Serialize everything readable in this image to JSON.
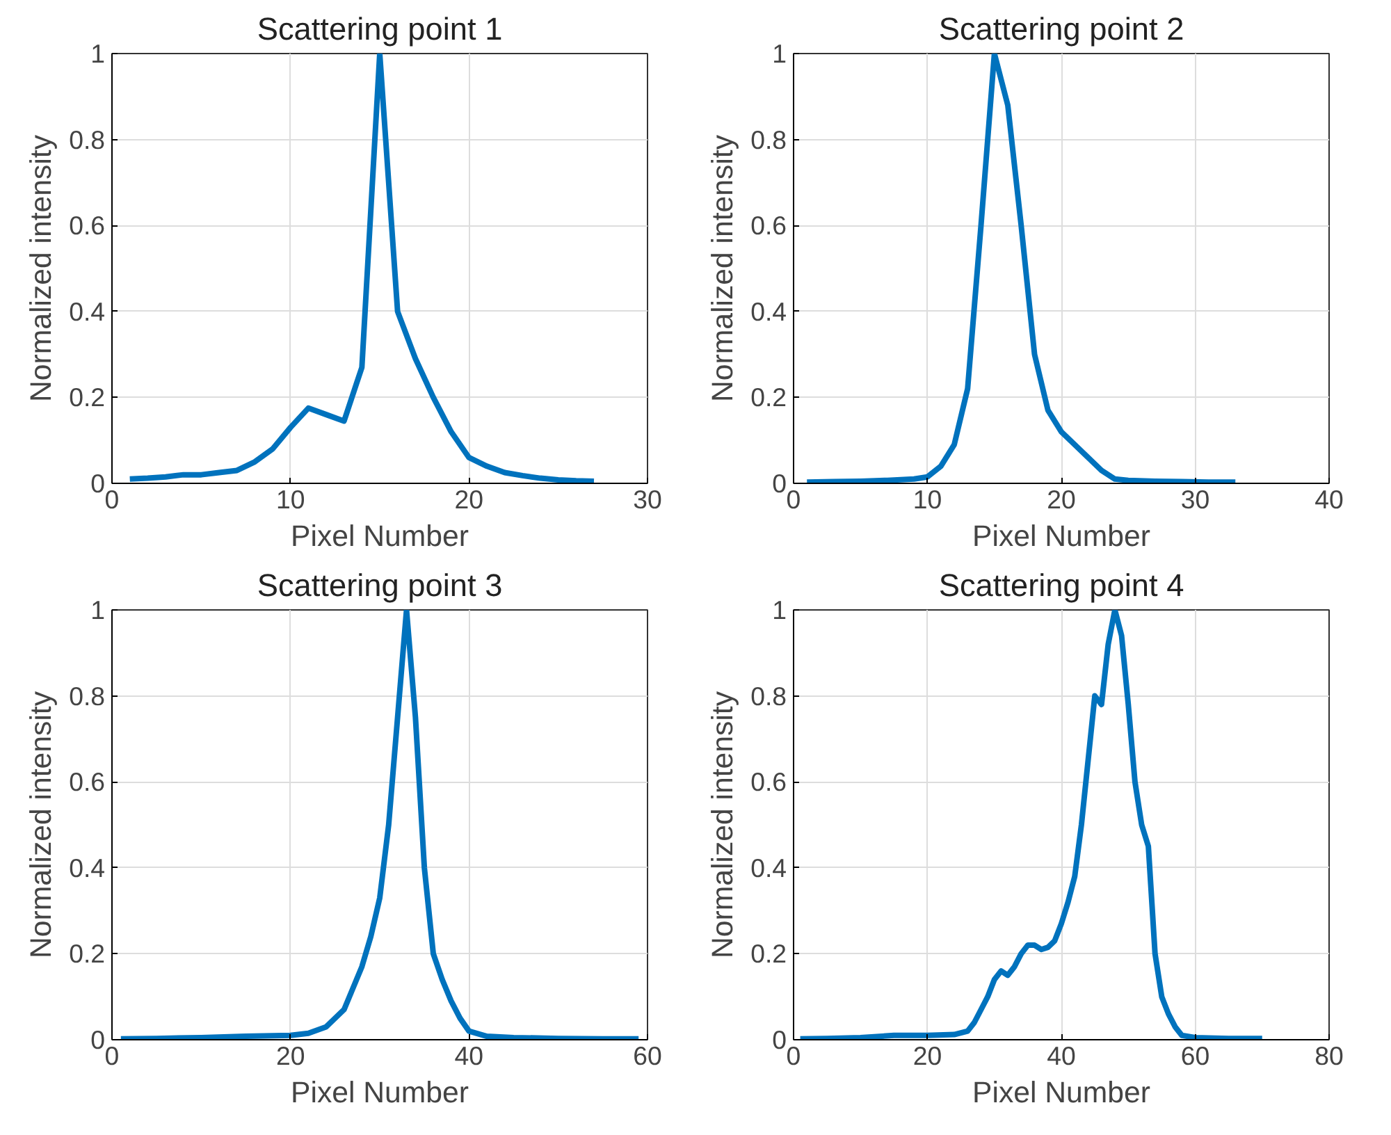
{
  "chart_data": [
    {
      "type": "line",
      "title": "Scattering point 1",
      "xlabel": "Pixel Number",
      "ylabel": "Normalized intensity",
      "grid": true,
      "xlim": [
        0,
        30
      ],
      "xticks": [
        0,
        10,
        20,
        30
      ],
      "ylim": [
        0,
        1
      ],
      "yticks": [
        0,
        0.2,
        0.4,
        0.6,
        0.8,
        1
      ],
      "x": [
        1,
        2,
        3,
        4,
        5,
        6,
        7,
        8,
        9,
        10,
        11,
        12,
        13,
        14,
        15,
        16,
        17,
        18,
        19,
        20,
        21,
        22,
        23,
        24,
        25,
        26,
        27
      ],
      "series": [
        {
          "color": "#0072bd",
          "values": [
            0.01,
            0.012,
            0.015,
            0.02,
            0.02,
            0.025,
            0.03,
            0.05,
            0.08,
            0.13,
            0.175,
            0.16,
            0.145,
            0.27,
            1.0,
            0.4,
            0.29,
            0.2,
            0.12,
            0.06,
            0.04,
            0.025,
            0.018,
            0.012,
            0.008,
            0.006,
            0.005
          ]
        }
      ]
    },
    {
      "type": "line",
      "title": "Scattering point 2",
      "xlabel": "Pixel Number",
      "ylabel": "Normalized intensity",
      "grid": true,
      "xlim": [
        0,
        40
      ],
      "xticks": [
        0,
        10,
        20,
        30,
        40
      ],
      "ylim": [
        0,
        1
      ],
      "yticks": [
        0,
        0.2,
        0.4,
        0.6,
        0.8,
        1
      ],
      "x": [
        1,
        3,
        5,
        7,
        9,
        10,
        11,
        12,
        13,
        14,
        15,
        16,
        17,
        18,
        19,
        20,
        21,
        22,
        23,
        24,
        25,
        27,
        29,
        31,
        33
      ],
      "series": [
        {
          "color": "#0072bd",
          "values": [
            0.003,
            0.004,
            0.005,
            0.007,
            0.01,
            0.015,
            0.04,
            0.09,
            0.22,
            0.6,
            1.0,
            0.88,
            0.6,
            0.3,
            0.17,
            0.12,
            0.09,
            0.06,
            0.03,
            0.01,
            0.007,
            0.005,
            0.004,
            0.003,
            0.003
          ]
        }
      ]
    },
    {
      "type": "line",
      "title": "Scattering point 3",
      "xlabel": "Pixel Number",
      "ylabel": "Normalized intensity",
      "grid": true,
      "xlim": [
        0,
        60
      ],
      "xticks": [
        0,
        20,
        40,
        60
      ],
      "ylim": [
        0,
        1
      ],
      "yticks": [
        0,
        0.2,
        0.4,
        0.6,
        0.8,
        1
      ],
      "x": [
        1,
        5,
        10,
        15,
        20,
        22,
        24,
        26,
        28,
        29,
        30,
        31,
        32,
        33,
        34,
        35,
        36,
        37,
        38,
        39,
        40,
        42,
        45,
        50,
        55,
        59
      ],
      "series": [
        {
          "color": "#0072bd",
          "values": [
            0.002,
            0.003,
            0.005,
            0.008,
            0.01,
            0.015,
            0.03,
            0.07,
            0.17,
            0.24,
            0.33,
            0.5,
            0.75,
            1.0,
            0.75,
            0.4,
            0.2,
            0.14,
            0.09,
            0.05,
            0.02,
            0.008,
            0.005,
            0.003,
            0.002,
            0.002
          ]
        }
      ]
    },
    {
      "type": "line",
      "title": "Scattering point 4",
      "xlabel": "Pixel Number",
      "ylabel": "Normalized intensity",
      "grid": true,
      "xlim": [
        0,
        80
      ],
      "xticks": [
        0,
        20,
        40,
        60,
        80
      ],
      "ylim": [
        0,
        1
      ],
      "yticks": [
        0,
        0.2,
        0.4,
        0.6,
        0.8,
        1
      ],
      "x": [
        1,
        5,
        10,
        15,
        20,
        24,
        26,
        27,
        28,
        29,
        30,
        31,
        32,
        33,
        34,
        35,
        36,
        37,
        38,
        39,
        40,
        41,
        42,
        43,
        44,
        45,
        46,
        47,
        48,
        49,
        50,
        51,
        52,
        53,
        54,
        55,
        56,
        57,
        58,
        60,
        65,
        70
      ],
      "series": [
        {
          "color": "#0072bd",
          "values": [
            0.002,
            0.003,
            0.005,
            0.01,
            0.01,
            0.012,
            0.02,
            0.04,
            0.07,
            0.1,
            0.14,
            0.16,
            0.15,
            0.17,
            0.2,
            0.22,
            0.22,
            0.21,
            0.215,
            0.23,
            0.27,
            0.32,
            0.38,
            0.5,
            0.65,
            0.8,
            0.78,
            0.92,
            1.0,
            0.94,
            0.78,
            0.6,
            0.5,
            0.45,
            0.2,
            0.1,
            0.06,
            0.03,
            0.01,
            0.005,
            0.003,
            0.003
          ]
        }
      ]
    }
  ]
}
